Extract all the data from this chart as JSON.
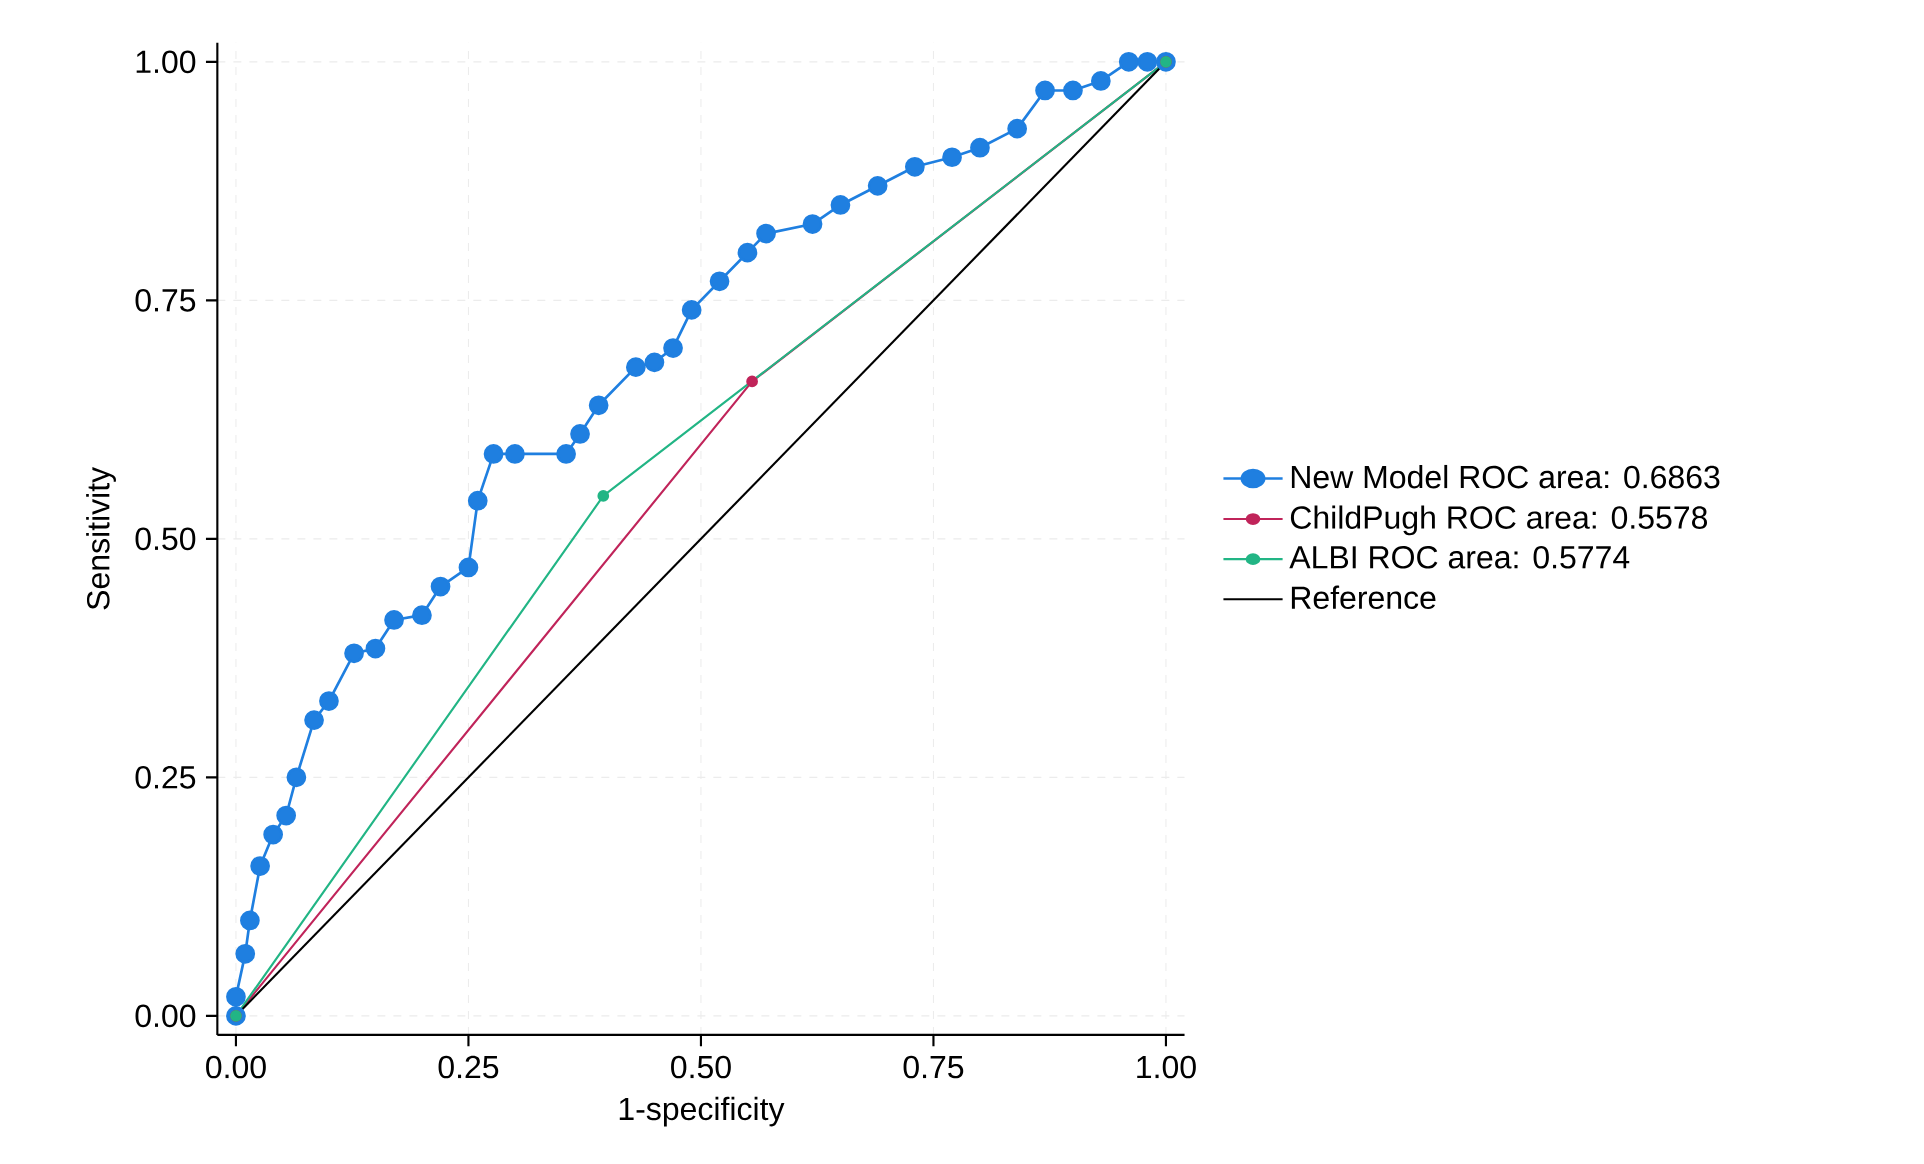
{
  "chart_data": {
    "type": "line",
    "xlabel": "1-specificity",
    "ylabel": "Sensitivity",
    "xlim": [
      -0.02,
      1.02
    ],
    "ylim": [
      -0.02,
      1.02
    ],
    "xticks": [
      {
        "value": 0,
        "label": "0.00"
      },
      {
        "value": 0.25,
        "label": "0.25"
      },
      {
        "value": 0.5,
        "label": "0.50"
      },
      {
        "value": 0.75,
        "label": "0.75"
      },
      {
        "value": 1,
        "label": "1.00"
      }
    ],
    "yticks": [
      {
        "value": 0,
        "label": "0.00"
      },
      {
        "value": 0.25,
        "label": "0.25"
      },
      {
        "value": 0.5,
        "label": "0.50"
      },
      {
        "value": 0.75,
        "label": "0.75"
      },
      {
        "value": 1,
        "label": "1.00"
      }
    ],
    "grid": true,
    "legend": "right",
    "marker": "circle",
    "series": [
      {
        "name": "New Model ROC area: 0.6863",
        "color": "#1f7fe0",
        "x": [
          0,
          0,
          0.01,
          0.015,
          0.026,
          0.04,
          0.054,
          0.065,
          0.084,
          0.1,
          0.127,
          0.15,
          0.17,
          0.2,
          0.22,
          0.25,
          0.26,
          0.277,
          0.3,
          0.355,
          0.37,
          0.39,
          0.43,
          0.45,
          0.47,
          0.49,
          0.52,
          0.55,
          0.57,
          0.62,
          0.65,
          0.69,
          0.73,
          0.77,
          0.8,
          0.84,
          0.87,
          0.9,
          0.93,
          0.96,
          0.98,
          1
        ],
        "values": [
          0,
          0.02,
          0.065,
          0.1,
          0.157,
          0.19,
          0.21,
          0.25,
          0.31,
          0.33,
          0.38,
          0.385,
          0.415,
          0.42,
          0.45,
          0.47,
          0.54,
          0.589,
          0.589,
          0.589,
          0.61,
          0.64,
          0.68,
          0.685,
          0.7,
          0.74,
          0.77,
          0.8,
          0.82,
          0.83,
          0.85,
          0.87,
          0.89,
          0.9,
          0.91,
          0.93,
          0.97,
          0.97,
          0.98,
          1.0,
          1.0,
          1.0
        ]
      },
      {
        "name": "ChildPugh ROC area: 0.5578",
        "color": "#c0245a",
        "x": [
          0,
          0.555,
          1
        ],
        "values": [
          0,
          0.665,
          1
        ]
      },
      {
        "name": "ALBI ROC area: 0.5774",
        "color": "#22b585",
        "x": [
          0,
          0.395,
          1
        ],
        "values": [
          0,
          0.545,
          1
        ]
      },
      {
        "name": "Reference",
        "color": "#000000",
        "marker": "none",
        "x": [
          0,
          1
        ],
        "values": [
          0,
          1
        ]
      }
    ]
  }
}
